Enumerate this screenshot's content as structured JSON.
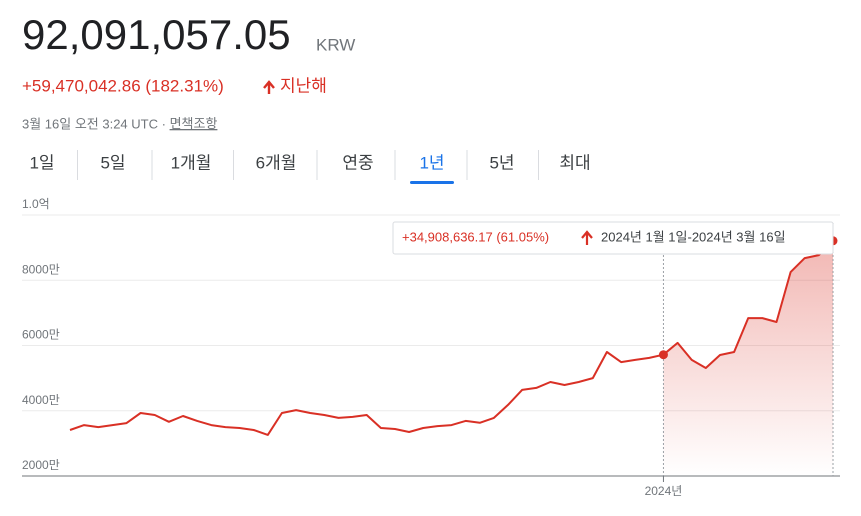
{
  "header": {
    "price": "92,091,057.05",
    "currency": "KRW",
    "change": "+59,470,042.86 (182.31%)",
    "change_period": "지난해",
    "timestamp": "3월 16일 오전 3:24 UTC · ",
    "disclaimer": "면책조항"
  },
  "tabs": [
    "1일",
    "5일",
    "1개월",
    "6개월",
    "연중",
    "1년",
    "5년",
    "최대"
  ],
  "active_tab": 5,
  "tooltip": {
    "change": "+34,908,636.17 (61.05%)",
    "range": "2024년 1월 1일-2024년 3월 16일"
  },
  "chart_data": {
    "type": "line",
    "color": "#d93025",
    "categories": [
      null,
      null,
      null,
      null,
      null,
      null,
      null,
      null,
      null,
      null,
      null,
      null,
      null,
      null,
      null,
      null,
      null,
      null,
      null,
      null,
      null,
      null,
      null,
      null,
      null,
      null,
      null,
      null,
      null,
      null,
      null,
      null,
      null,
      null,
      null,
      null,
      null,
      null,
      null,
      null,
      null,
      null,
      "2024년",
      null,
      null,
      null,
      null,
      null,
      null,
      null,
      null,
      null,
      null,
      null,
      null
    ],
    "values": [
      34100000,
      35600000,
      35000000,
      35600000,
      36200000,
      39300000,
      38700000,
      36600000,
      38400000,
      36900000,
      35600000,
      35000000,
      34700000,
      34100000,
      32600000,
      39300000,
      40200000,
      39300000,
      38700000,
      37800000,
      38100000,
      38700000,
      34700000,
      34400000,
      33500000,
      34700000,
      35300000,
      35600000,
      36900000,
      36300000,
      37800000,
      41800000,
      46400000,
      47000000,
      48800000,
      47900000,
      48800000,
      50000000,
      58000000,
      54900000,
      55600000,
      56200000,
      57182420.88,
      60800000,
      55600000,
      53100000,
      57100000,
      58000000,
      68400000,
      68400000,
      67200000,
      82500000,
      86800000,
      87700000,
      92091057.05
    ],
    "ylim": [
      20000000,
      100000000
    ],
    "yticks": [
      {
        "value": 20000000,
        "label": "2000만"
      },
      {
        "value": 40000000,
        "label": "4000만"
      },
      {
        "value": 60000000,
        "label": "6000만"
      },
      {
        "value": 80000000,
        "label": "8000만"
      },
      {
        "value": 100000000,
        "label": "1.0억"
      }
    ],
    "grid": true
  }
}
